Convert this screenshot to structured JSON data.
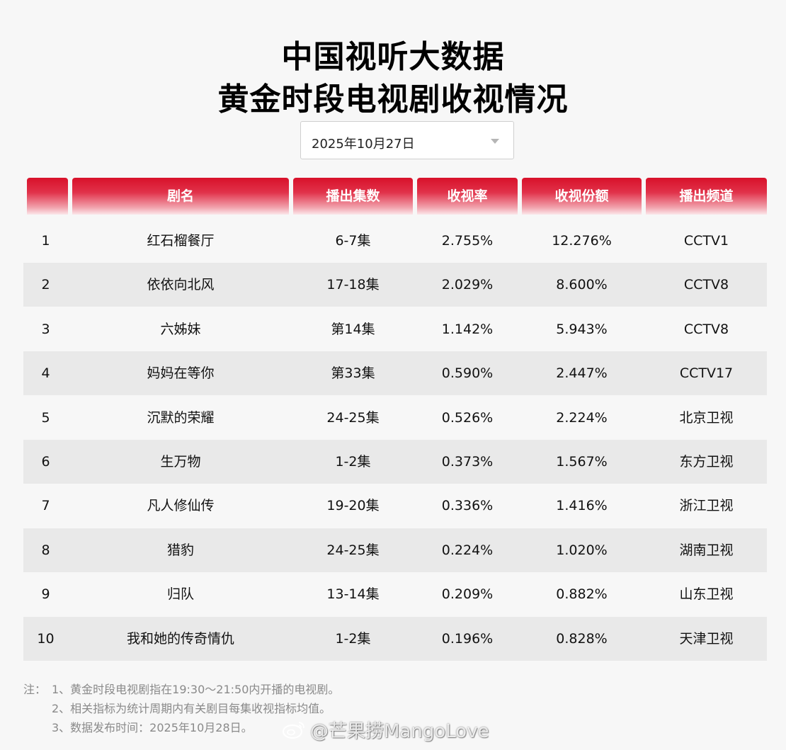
{
  "title": {
    "line1": "中国视听大数据",
    "line2": "黄金时段电视剧收视情况"
  },
  "date_select": {
    "value": "2025年10月27日"
  },
  "table": {
    "columns": [
      "",
      "剧名",
      "播出集数",
      "收视率",
      "收视份额",
      "播出频道"
    ],
    "rows": [
      [
        "1",
        "红石榴餐厅",
        "6-7集",
        "2.755%",
        "12.276%",
        "CCTV1"
      ],
      [
        "2",
        "依依向北风",
        "17-18集",
        "2.029%",
        "8.600%",
        "CCTV8"
      ],
      [
        "3",
        "六姊妹",
        "第14集",
        "1.142%",
        "5.943%",
        "CCTV8"
      ],
      [
        "4",
        "妈妈在等你",
        "第33集",
        "0.590%",
        "2.447%",
        "CCTV17"
      ],
      [
        "5",
        "沉默的荣耀",
        "24-25集",
        "0.526%",
        "2.224%",
        "北京卫视"
      ],
      [
        "6",
        "生万物",
        "1-2集",
        "0.373%",
        "1.567%",
        "东方卫视"
      ],
      [
        "7",
        "凡人修仙传",
        "19-20集",
        "0.336%",
        "1.416%",
        "浙江卫视"
      ],
      [
        "8",
        "猎豹",
        "24-25集",
        "0.224%",
        "1.020%",
        "湖南卫视"
      ],
      [
        "9",
        "归队",
        "13-14集",
        "0.209%",
        "0.882%",
        "山东卫视"
      ],
      [
        "10",
        "我和她的传奇情仇",
        "1-2集",
        "0.196%",
        "0.828%",
        "天津卫视"
      ]
    ]
  },
  "notes": {
    "prefix": "注：",
    "lines": [
      "1、黄金时段电视剧指在19:30～21:50内开播的电视剧。",
      "2、相关指标为统计周期内有关剧目每集收视指标均值。",
      "3、数据发布时间：2025年10月28日。"
    ]
  },
  "watermark": {
    "text": "@芒果捞MangoLove"
  },
  "colors": {
    "header_red": "#d8112a",
    "row_alt": "#e9e9e9",
    "page_bg": "#f7f7f7"
  }
}
